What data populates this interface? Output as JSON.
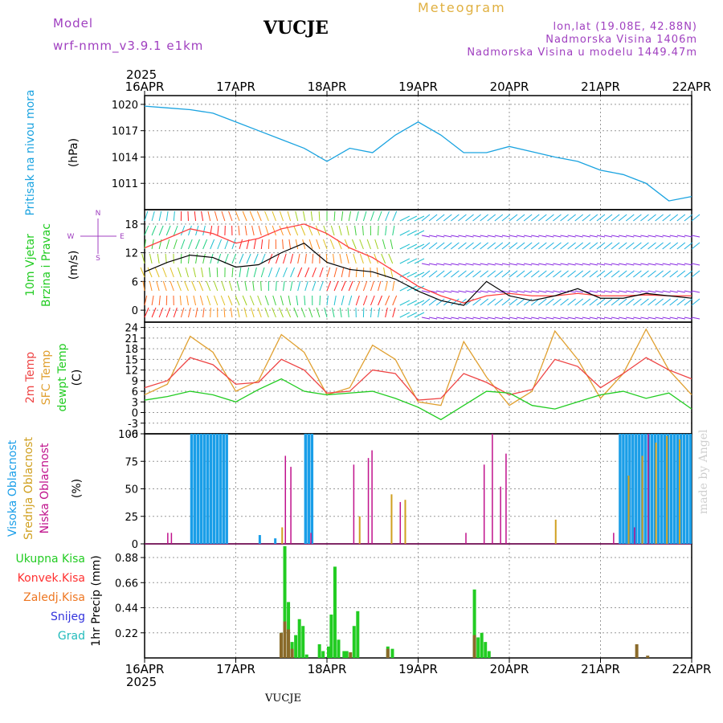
{
  "header": {
    "model_label": "Model",
    "model_name": "wrf-nmm_v3.9.1 e1km",
    "station": "VUCJE",
    "product": "Meteogram",
    "lonlat": "lon,lat (19.08E, 42.88N)",
    "elevation": "Nadmorska Visina 1406m",
    "model_elevation": "Nadmorska Visina u modelu 1449.47m"
  },
  "footer": {
    "station": "VUCJE",
    "watermark": "made by Angel"
  },
  "x_axis": {
    "year": "2025",
    "dates": [
      "16APR",
      "17APR",
      "18APR",
      "19APR",
      "20APR",
      "21APR",
      "22APR"
    ]
  },
  "colors": {
    "pressure": "#1aa3e0",
    "wind_avg": "#000000",
    "wind_gust": "#ff4040",
    "temp2m": "#ee4444",
    "sfc": "#e0a030",
    "dewp": "#22cc22",
    "high_cloud": "#1a9ee8",
    "mid_cloud": "#d0a020",
    "low_cloud": "#c0128c",
    "total_precip": "#22cc22",
    "conv": "#ff3030",
    "frozen": "#ee7722",
    "snow": "#3333dd",
    "hail": "#22bbbb"
  },
  "chart_data": [
    {
      "type": "line",
      "panel": "pressure",
      "title": "",
      "ylabel_left": "Pritisak na nivou mora",
      "ylabel_unit": "(hPa)",
      "yticks": [
        "1011",
        "1014",
        "1017",
        "1020"
      ],
      "ylim": [
        1008,
        1021
      ],
      "x_days": [
        0,
        0.25,
        0.5,
        0.75,
        1.0,
        1.25,
        1.5,
        1.75,
        2.0,
        2.25,
        2.5,
        2.75,
        3.0,
        3.25,
        3.5,
        3.75,
        4.0,
        4.25,
        4.5,
        4.75,
        5.0,
        5.25,
        5.5,
        5.75,
        6.0
      ],
      "series": [
        {
          "values": [
            1019.8,
            1019.6,
            1019.4,
            1019.0,
            1018.0,
            1017.0,
            1016.0,
            1015.0,
            1013.5,
            1015.0,
            1014.5,
            1016.5,
            1018.0,
            1016.5,
            1014.5,
            1014.5,
            1015.2,
            1014.6,
            1014.0,
            1013.5,
            1012.5,
            1012.0,
            1011.0,
            1009.0,
            1009.5
          ]
        }
      ]
    },
    {
      "type": "line",
      "panel": "wind",
      "title": "",
      "ylabel_left": [
        "10m Vjetar",
        "Brzina i Pravac"
      ],
      "ylabel_unit": "(m/s)",
      "compass": [
        "N",
        "E",
        "S",
        "W"
      ],
      "yticks": [
        "0",
        "6",
        "12",
        "18"
      ],
      "ylim": [
        -2.5,
        21
      ],
      "x_days": [
        0,
        0.25,
        0.5,
        0.75,
        1.0,
        1.25,
        1.5,
        1.75,
        2.0,
        2.25,
        2.5,
        2.75,
        3.0,
        3.25,
        3.5,
        3.75,
        4.0,
        4.25,
        4.5,
        4.75,
        5.0,
        5.25,
        5.5,
        5.75,
        6.0
      ],
      "series": [
        {
          "values": [
            8.0,
            10.0,
            11.5,
            11.0,
            9.0,
            9.5,
            12.0,
            14.0,
            10.0,
            8.5,
            8.0,
            6.5,
            4.0,
            2.0,
            1.0,
            6.0,
            3.0,
            2.0,
            3.0,
            4.5,
            2.5,
            2.5,
            3.5,
            3.0,
            2.5
          ]
        },
        {
          "values": [
            13.0,
            15.0,
            17.0,
            16.0,
            14.0,
            15.0,
            17.0,
            18.0,
            16.0,
            13.0,
            11.0,
            8.0,
            5.0,
            3.0,
            1.5,
            3.0,
            3.5,
            3.0,
            3.0,
            3.5,
            3.0,
            3.0,
            3.2,
            3.0,
            3.0
          ]
        }
      ]
    },
    {
      "type": "line",
      "panel": "temperature",
      "title": "",
      "ylabel_left": [
        "2m Temp",
        "SFC Temp",
        "dewpt Temp"
      ],
      "ylabel_unit": "(C)",
      "yticks": [
        "-6",
        "-3",
        "0",
        "3",
        "6",
        "9",
        "12",
        "15",
        "18",
        "21",
        "24"
      ],
      "ylim": [
        -6,
        25.5
      ],
      "x_days": [
        0,
        0.25,
        0.5,
        0.75,
        1.0,
        1.25,
        1.5,
        1.75,
        2.0,
        2.25,
        2.5,
        2.75,
        3.0,
        3.25,
        3.5,
        3.75,
        4.0,
        4.25,
        4.5,
        4.75,
        5.0,
        5.25,
        5.5,
        5.75,
        6.0
      ],
      "series": [
        {
          "values": [
            7.0,
            9.0,
            15.5,
            13.5,
            8.0,
            8.5,
            15.0,
            12.0,
            5.5,
            6.0,
            12.0,
            11.0,
            3.5,
            4.0,
            11.0,
            8.5,
            5.0,
            6.5,
            15.0,
            13.0,
            7.0,
            11.0,
            15.5,
            12.0,
            9.5
          ]
        },
        {
          "values": [
            5.0,
            8.0,
            21.5,
            17.0,
            6.0,
            9.0,
            22.0,
            17.0,
            5.0,
            7.0,
            19.0,
            15.0,
            3.0,
            2.0,
            20.0,
            10.0,
            2.0,
            6.0,
            23.0,
            15.0,
            4.0,
            11.0,
            23.5,
            12.0,
            5.0
          ]
        },
        {
          "values": [
            3.5,
            4.5,
            6.0,
            5.0,
            3.0,
            6.5,
            9.5,
            6.0,
            5.0,
            5.5,
            6.0,
            4.0,
            1.5,
            -2.0,
            2.0,
            6.0,
            5.5,
            2.0,
            1.0,
            3.0,
            5.0,
            6.0,
            4.0,
            5.5,
            1.0
          ]
        }
      ]
    },
    {
      "type": "bar",
      "panel": "cloud",
      "title": "",
      "ylabel_left": [
        "Visoka Oblacnost",
        "Srednja Oblacnost",
        "Niska Oblacnost"
      ],
      "ylabel_unit": "(%)",
      "yticks": [
        "0",
        "25",
        "50",
        "75",
        "100"
      ],
      "ylim": [
        0,
        100
      ],
      "series": [
        {
          "name": "Visoka Oblacnost",
          "ranges": [
            [
              0.5,
              0.9,
              100
            ],
            [
              1.75,
              1.84,
              100
            ],
            [
              5.2,
              5.99,
              100
            ]
          ],
          "singles": [
            [
              1.25,
              8
            ],
            [
              1.42,
              5
            ]
          ]
        },
        {
          "name": "Srednja Oblacnost",
          "values": [
            [
              1.5,
              15
            ],
            [
              2.35,
              25
            ],
            [
              2.7,
              45
            ],
            [
              2.85,
              40
            ],
            [
              4.5,
              22
            ],
            [
              5.3,
              62
            ],
            [
              5.45,
              80
            ],
            [
              5.6,
              92
            ],
            [
              5.72,
              98
            ],
            [
              5.86,
              95
            ]
          ]
        },
        {
          "name": "Niska Oblacnost",
          "values": [
            [
              0.23,
              10
            ],
            [
              0.27,
              10
            ],
            [
              1.52,
              80
            ],
            [
              1.58,
              70
            ],
            [
              1.8,
              10
            ],
            [
              2.27,
              72
            ],
            [
              2.43,
              78
            ],
            [
              2.47,
              85
            ],
            [
              2.78,
              38
            ],
            [
              3.5,
              10
            ],
            [
              3.7,
              72
            ],
            [
              3.79,
              100
            ],
            [
              3.88,
              52
            ],
            [
              3.94,
              82
            ],
            [
              5.12,
              10
            ],
            [
              5.35,
              15
            ],
            [
              5.5,
              100
            ]
          ]
        }
      ]
    },
    {
      "type": "bar",
      "panel": "precip",
      "title": "",
      "ylabel_left": [
        "Ukupna Kisa",
        "Konvek.Kisa",
        "Zaledj.Kisa",
        "Snijeg",
        "Grad"
      ],
      "ylabel_unit": "1hr Precip (mm)",
      "yticks": [
        "0.22",
        "0.44",
        "0.66",
        "0.88"
      ],
      "ylim": [
        0,
        1.0
      ],
      "series": [
        {
          "name": "Ukupna Kisa",
          "values": [
            [
              1.48,
              0.22
            ],
            [
              1.52,
              0.98
            ],
            [
              1.56,
              0.49
            ],
            [
              1.6,
              0.14
            ],
            [
              1.64,
              0.2
            ],
            [
              1.68,
              0.34
            ],
            [
              1.72,
              0.28
            ],
            [
              1.76,
              0.03
            ],
            [
              1.9,
              0.12
            ],
            [
              1.94,
              0.06
            ],
            [
              2.0,
              0.1
            ],
            [
              2.03,
              0.38
            ],
            [
              2.07,
              0.8
            ],
            [
              2.11,
              0.16
            ],
            [
              2.17,
              0.06
            ],
            [
              2.2,
              0.06
            ],
            [
              2.28,
              0.28
            ],
            [
              2.32,
              0.41
            ],
            [
              2.65,
              0.1
            ],
            [
              2.7,
              0.08
            ],
            [
              3.6,
              0.6
            ],
            [
              3.64,
              0.18
            ],
            [
              3.68,
              0.22
            ],
            [
              3.72,
              0.14
            ],
            [
              3.76,
              0.06
            ]
          ]
        },
        {
          "name": "Zaledj.Kisa",
          "values": [
            [
              1.48,
              0.22
            ],
            [
              1.52,
              0.32
            ],
            [
              1.56,
              0.25
            ],
            [
              1.6,
              0.08
            ],
            [
              2.24,
              0.05
            ],
            [
              2.65,
              0.08
            ],
            [
              3.6,
              0.2
            ],
            [
              5.38,
              0.12
            ],
            [
              5.5,
              0.02
            ]
          ]
        }
      ]
    }
  ]
}
